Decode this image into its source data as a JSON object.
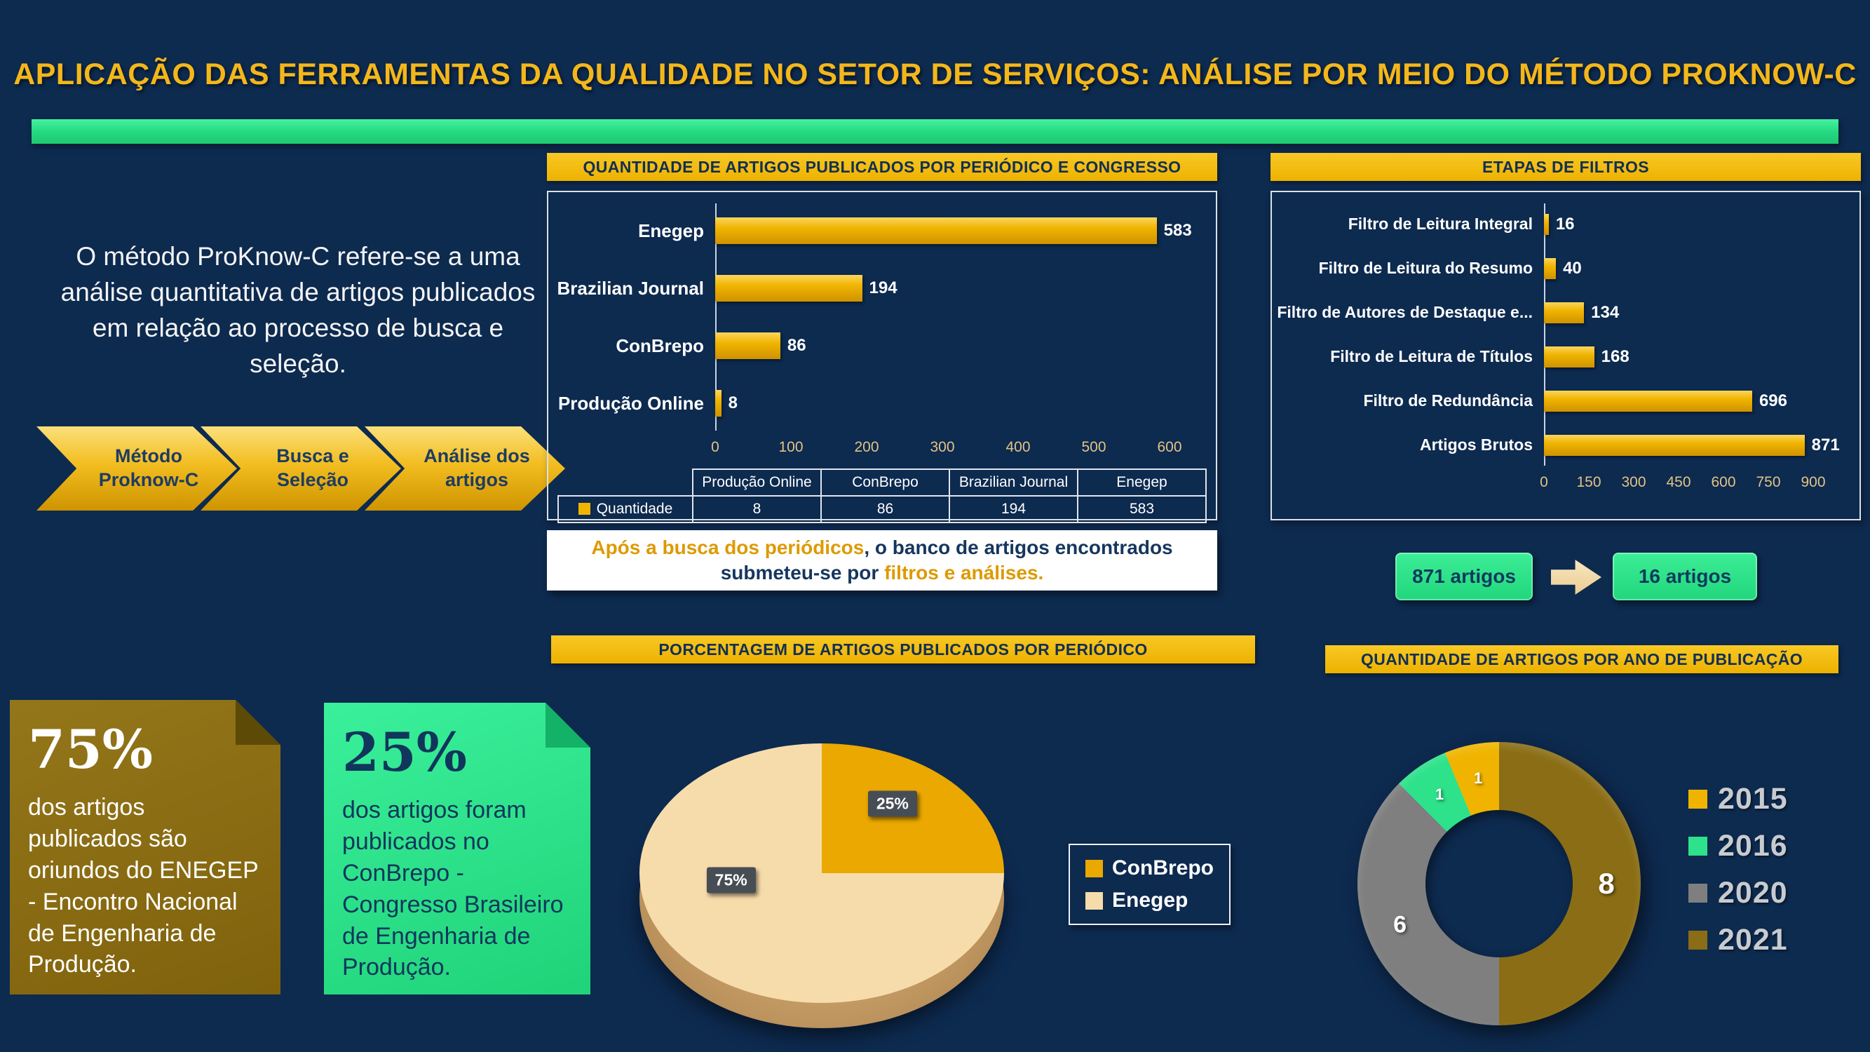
{
  "page": {
    "title": "APLICAÇÃO DAS FERRAMENTAS DA QUALIDADE NO SETOR DE SERVIÇOS: ANÁLISE POR MEIO DO MÉTODO PROKNOW-C"
  },
  "colors": {
    "background": "#0d2a4f",
    "gold": "#f0b400",
    "green": "#2de28a",
    "cream": "#f7dcab",
    "olive": "#8a6d15",
    "gray": "#7f7f7f",
    "navy_text": "#16365e"
  },
  "intro": {
    "text": "O método ProKnow-C refere-se a uma análise quantitativa de artigos publicados em relação ao processo de busca e seleção.",
    "steps": [
      {
        "label": "Método Proknow-C"
      },
      {
        "label": "Busca e Seleção"
      },
      {
        "label": "Análise dos artigos"
      }
    ]
  },
  "note": {
    "highlight1": "Após a busca dos periódicos",
    "middle": ", o banco de artigos encontrados submeteu-se por ",
    "highlight2": "filtros e análises."
  },
  "flow": {
    "from_label": "871 artigos",
    "to_label": "16 artigos"
  },
  "callouts": [
    {
      "value": "75%",
      "text": "dos artigos publicados são oriundos do ENEGEP - Encontro Nacional de Engenharia de Produção."
    },
    {
      "value": "25%",
      "text": "dos artigos foram publicados no ConBrepo - Congresso Brasileiro de Engenharia de Produção."
    }
  ],
  "chart_data": [
    {
      "id": "periodicos",
      "type": "bar",
      "orientation": "horizontal",
      "title": "QUANTIDADE DE ARTIGOS PUBLICADOS POR PERIÓDICO E CONGRESSO",
      "categories": [
        "Enegep",
        "Brazilian Journal",
        "ConBrepo",
        "Produção Online"
      ],
      "values": [
        583,
        194,
        86,
        8
      ],
      "series_name": "Quantidade",
      "bar_color": "#f0b400",
      "xlim": [
        0,
        600
      ],
      "xticks": [
        0,
        100,
        200,
        300,
        400,
        500,
        600
      ],
      "data_table": {
        "row_label": "Quantidade",
        "columns": [
          "Produção Online",
          "ConBrepo",
          "Brazilian Journal",
          "Enegep"
        ],
        "values": [
          8,
          86,
          194,
          583
        ]
      }
    },
    {
      "id": "filtros",
      "type": "bar",
      "orientation": "horizontal",
      "title": "ETAPAS DE FILTROS",
      "categories": [
        "Filtro de Leitura Integral",
        "Filtro de Leitura do Resumo",
        "Filtro de Autores de Destaque e...",
        "Filtro de Leitura de Títulos",
        "Filtro de Redundância",
        "Artigos Brutos"
      ],
      "values": [
        16,
        40,
        134,
        168,
        696,
        871
      ],
      "bar_color": "#f0b400",
      "xlim": [
        0,
        900
      ],
      "xticks": [
        0,
        150,
        300,
        450,
        600,
        750,
        900
      ]
    },
    {
      "id": "percent",
      "type": "pie",
      "title": "PORCENTAGEM DE ARTIGOS PUBLICADOS POR PERIÓDICO",
      "labels": [
        "ConBrepo",
        "Enegep"
      ],
      "values": [
        25,
        75
      ],
      "value_labels": [
        "25%",
        "75%"
      ],
      "colors": [
        "#eaa800",
        "#f7dcab"
      ],
      "legend_position": "right",
      "style": "3d"
    },
    {
      "id": "anos",
      "type": "donut",
      "title": "QUANTIDADE DE ARTIGOS POR  ANO DE PUBLICAÇÃO",
      "labels": [
        "2015",
        "2016",
        "2020",
        "2021"
      ],
      "values": [
        1,
        1,
        6,
        8
      ],
      "colors": [
        "#f0b400",
        "#2de28a",
        "#7f7f7f",
        "#8a6d15"
      ],
      "direction": "counterclockwise",
      "start_angle_deg": 0,
      "legend_position": "right"
    }
  ]
}
